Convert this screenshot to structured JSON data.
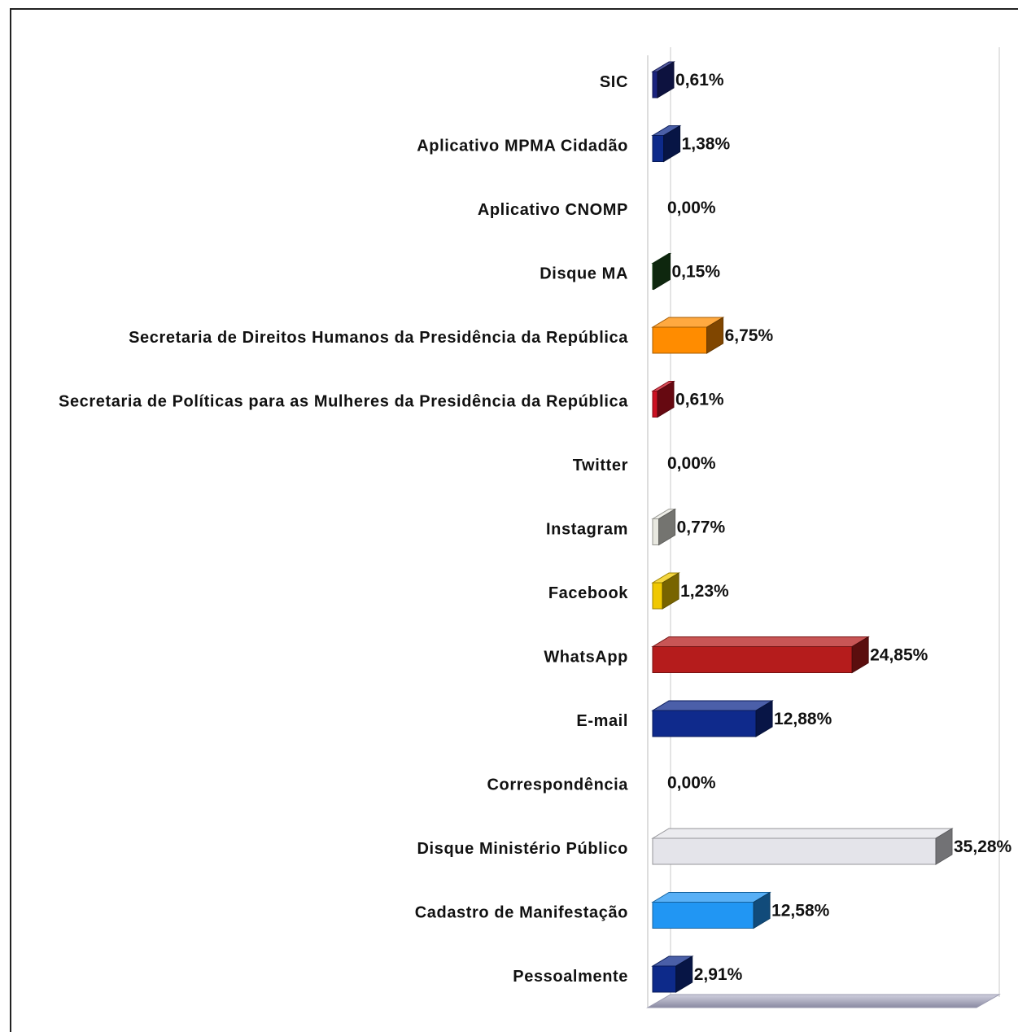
{
  "chart_data": {
    "type": "bar",
    "orientation": "horizontal",
    "style": "3d",
    "categories": [
      "SIC",
      "Aplicativo MPMA Cidadão",
      "Aplicativo CNOMP",
      "Disque MA",
      "Secretaria de Direitos Humanos da Presidência da República",
      "Secretaria de Políticas para as Mulheres da Presidência da República",
      "Twitter",
      "Instagram",
      "Facebook",
      "WhatsApp",
      "E-mail",
      "Correspondência",
      "Disque Ministério Público",
      "Cadastro de Manifestação",
      "Pessoalmente"
    ],
    "values": [
      0.61,
      1.38,
      0.0,
      0.15,
      6.75,
      0.61,
      0.0,
      0.77,
      1.23,
      24.85,
      12.88,
      0.0,
      35.28,
      12.58,
      2.91
    ],
    "value_labels": [
      "0,61%",
      "1,38%",
      "0,00%",
      "0,15%",
      "6,75%",
      "0,61%",
      "0,00%",
      "0,77%",
      "1,23%",
      "24,85%",
      "12,88%",
      "0,00%",
      "35,28%",
      "12,58%",
      "2,91%"
    ],
    "colors": [
      "#1a237e",
      "#0d2a8a",
      "#999999",
      "#1b4d1b",
      "#ff8c00",
      "#cc1122",
      "#999999",
      "#e8e8e0",
      "#f0c800",
      "#b51c1c",
      "#0f2a8c",
      "#999999",
      "#e4e4ea",
      "#2196f3",
      "#0d2a8a"
    ],
    "title": "",
    "xlabel": "",
    "ylabel": "",
    "xlim": [
      0,
      35.28
    ],
    "grid": false,
    "legend": "none"
  }
}
